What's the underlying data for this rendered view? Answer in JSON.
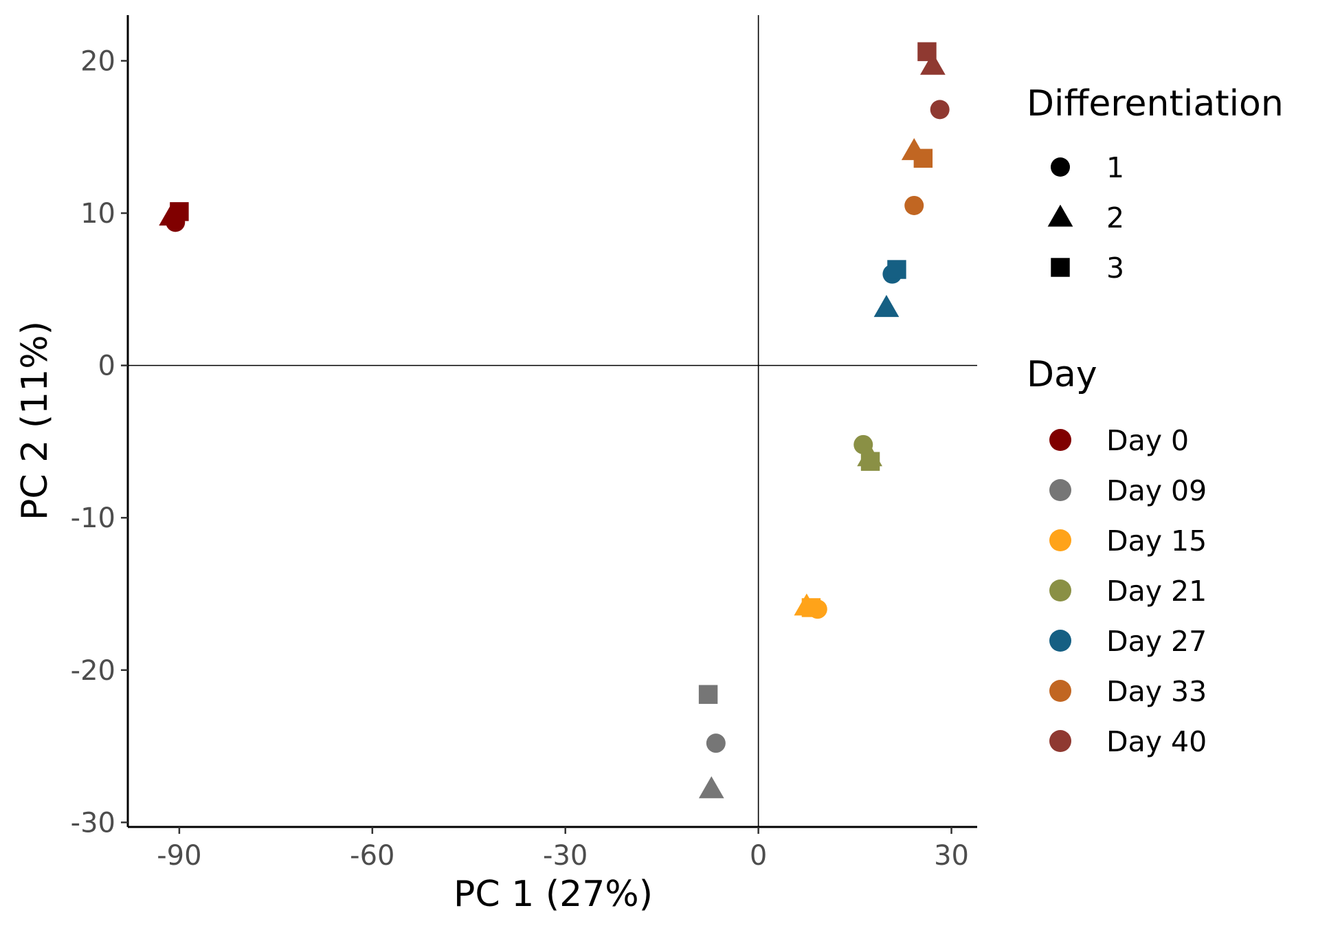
{
  "chart_data": {
    "type": "scatter",
    "xlabel": "PC 1 (27%)",
    "ylabel": "PC 2 (11%)",
    "xlim": [
      -98,
      34
    ],
    "ylim": [
      -30.3,
      23
    ],
    "x_ticks": [
      -90,
      -60,
      -30,
      0,
      30
    ],
    "y_ticks": [
      20,
      10,
      0,
      -10,
      -20,
      -30
    ],
    "x_tick_labels": [
      "-90",
      "-60",
      "-30",
      "0",
      "30"
    ],
    "y_tick_labels": [
      "20",
      "10",
      "0",
      "-10",
      "-20",
      "-30"
    ],
    "reference_lines": {
      "x": 0,
      "y": 0
    },
    "grid": false,
    "legend_position": "right",
    "legends": {
      "shape": {
        "title": "Differentiation",
        "items": [
          {
            "label": "1",
            "shape": "circle"
          },
          {
            "label": "2",
            "shape": "triangle"
          },
          {
            "label": "3",
            "shape": "square"
          }
        ]
      },
      "color": {
        "title": "Day",
        "items": [
          {
            "label": "Day 0",
            "color": "#800000"
          },
          {
            "label": "Day 09",
            "color": "#767676"
          },
          {
            "label": "Day 15",
            "color": "#FFA319"
          },
          {
            "label": "Day 21",
            "color": "#8A9045"
          },
          {
            "label": "Day 27",
            "color": "#155F83"
          },
          {
            "label": "Day 33",
            "color": "#C16622"
          },
          {
            "label": "Day 40",
            "color": "#8F3931"
          }
        ]
      }
    },
    "points": [
      {
        "day": "Day 0",
        "differentiation": "1",
        "x": -90.6,
        "y": 9.4
      },
      {
        "day": "Day 0",
        "differentiation": "2",
        "x": -91.2,
        "y": 9.8
      },
      {
        "day": "Day 0",
        "differentiation": "3",
        "x": -90.0,
        "y": 10.1
      },
      {
        "day": "Day 09",
        "differentiation": "1",
        "x": -6.6,
        "y": -24.8
      },
      {
        "day": "Day 09",
        "differentiation": "2",
        "x": -7.3,
        "y": -27.8
      },
      {
        "day": "Day 09",
        "differentiation": "3",
        "x": -7.8,
        "y": -21.6
      },
      {
        "day": "Day 15",
        "differentiation": "1",
        "x": 9.2,
        "y": -16.0
      },
      {
        "day": "Day 15",
        "differentiation": "2",
        "x": 7.5,
        "y": -15.8
      },
      {
        "day": "Day 15",
        "differentiation": "3",
        "x": 8.2,
        "y": -15.9
      },
      {
        "day": "Day 21",
        "differentiation": "1",
        "x": 16.3,
        "y": -5.2
      },
      {
        "day": "Day 21",
        "differentiation": "2",
        "x": 17.3,
        "y": -6.0
      },
      {
        "day": "Day 21",
        "differentiation": "3",
        "x": 17.4,
        "y": -6.3
      },
      {
        "day": "Day 27",
        "differentiation": "1",
        "x": 20.8,
        "y": 6.0
      },
      {
        "day": "Day 27",
        "differentiation": "2",
        "x": 19.9,
        "y": 3.8
      },
      {
        "day": "Day 27",
        "differentiation": "3",
        "x": 21.5,
        "y": 6.3
      },
      {
        "day": "Day 33",
        "differentiation": "1",
        "x": 24.2,
        "y": 10.5
      },
      {
        "day": "Day 33",
        "differentiation": "2",
        "x": 24.2,
        "y": 14.1
      },
      {
        "day": "Day 33",
        "differentiation": "3",
        "x": 25.6,
        "y": 13.6
      },
      {
        "day": "Day 40",
        "differentiation": "1",
        "x": 28.2,
        "y": 16.8
      },
      {
        "day": "Day 40",
        "differentiation": "2",
        "x": 27.1,
        "y": 19.7
      },
      {
        "day": "Day 40",
        "differentiation": "3",
        "x": 26.2,
        "y": 20.6
      }
    ]
  }
}
